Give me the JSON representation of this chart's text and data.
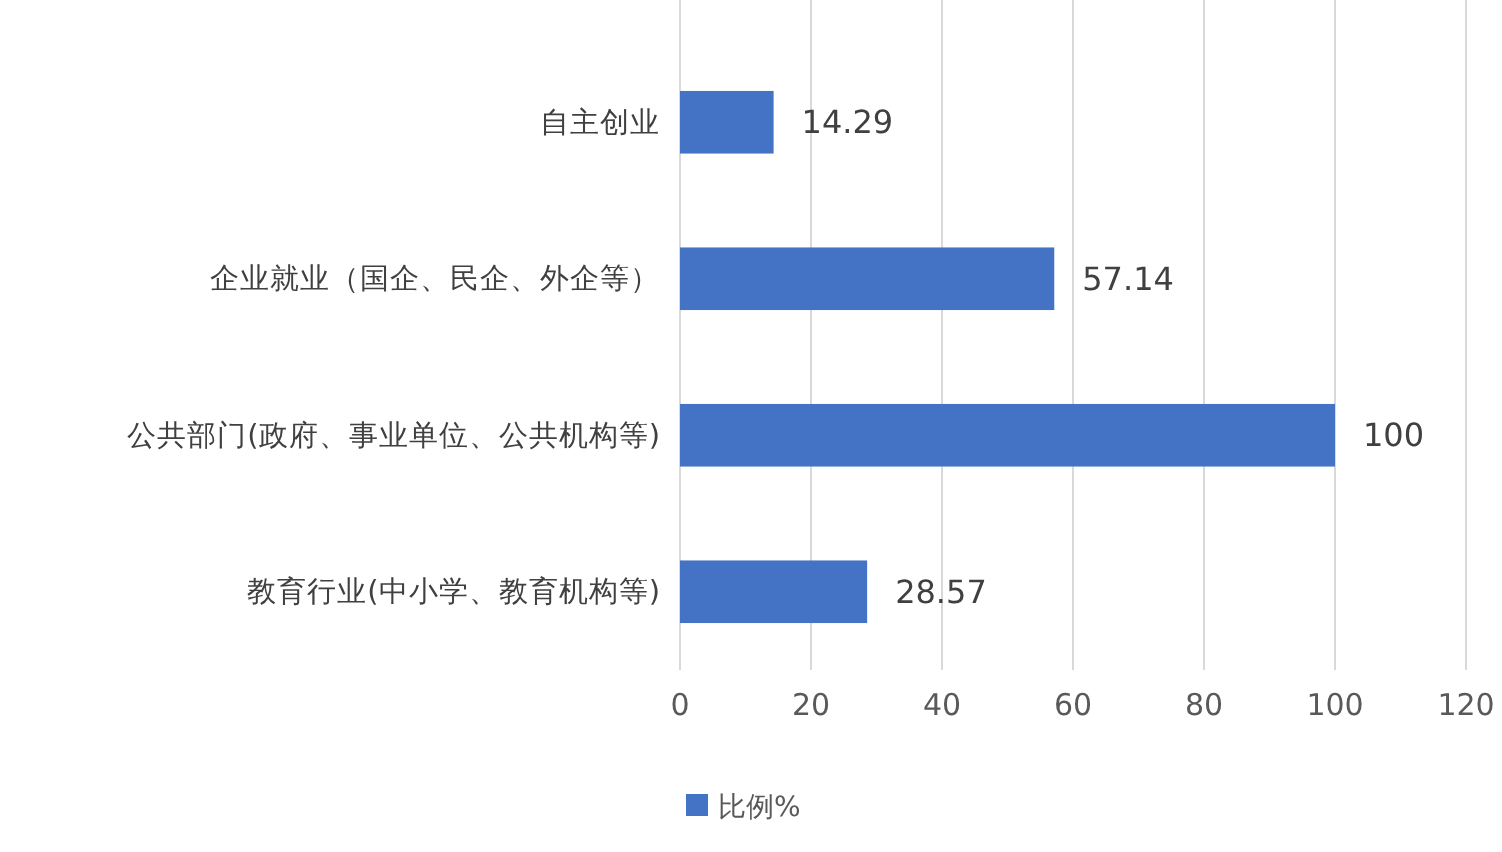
{
  "chart_data": {
    "type": "bar",
    "orientation": "horizontal",
    "categories": [
      "自主创业",
      "企业就业（国企、民企、外企等）",
      "公共部门(政府、事业单位、公共机构等)",
      "教育行业(中小学、教育机构等)"
    ],
    "series": [
      {
        "name": "比例%",
        "color": "#4472c4",
        "values": [
          14.29,
          57.14,
          100,
          28.57
        ]
      }
    ],
    "xlim": [
      0,
      120
    ],
    "xticks": [
      0,
      20,
      40,
      60,
      80,
      100,
      120
    ],
    "grid": "x",
    "legend": "bottom",
    "data_labels": true
  }
}
